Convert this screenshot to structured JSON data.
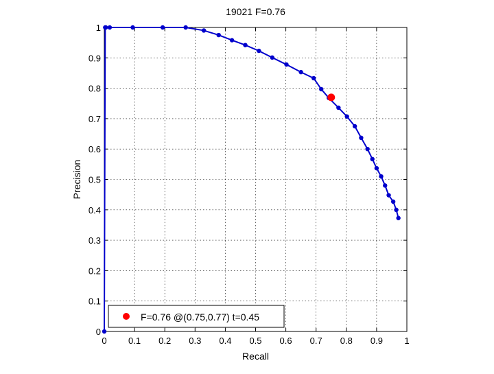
{
  "chart_data": {
    "type": "line",
    "title": "19021 F=0.76",
    "xlabel": "Recall",
    "ylabel": "Precision",
    "xlim": [
      0,
      1
    ],
    "ylim": [
      0,
      1
    ],
    "grid": true,
    "xticks": [
      "0",
      "0.1",
      "0.2",
      "0.3",
      "0.4",
      "0.5",
      "0.6",
      "0.7",
      "0.8",
      "0.9",
      "1"
    ],
    "yticks": [
      "0",
      "0.1",
      "0.2",
      "0.3",
      "0.4",
      "0.5",
      "0.6",
      "0.7",
      "0.8",
      "0.9",
      "1"
    ],
    "series": [
      {
        "color": "#0000cc",
        "x": [
          0,
          0.003,
          0.005,
          0.018,
          0.094,
          0.193,
          0.269,
          0.329,
          0.378,
          0.422,
          0.466,
          0.511,
          0.555,
          0.602,
          0.65,
          0.692,
          0.717,
          0.742,
          0.774,
          0.802,
          0.828,
          0.849,
          0.87,
          0.886,
          0.9,
          0.915,
          0.928,
          0.94,
          0.955,
          0.965,
          0.972
        ],
        "y": [
          0,
          1.0,
          1.0,
          1.0,
          1.0,
          1.0,
          1.0,
          0.99,
          0.975,
          0.958,
          0.942,
          0.923,
          0.901,
          0.878,
          0.853,
          0.833,
          0.797,
          0.768,
          0.736,
          0.707,
          0.675,
          0.637,
          0.6,
          0.567,
          0.537,
          0.51,
          0.48,
          0.448,
          0.427,
          0.4,
          0.373
        ]
      }
    ],
    "best_point": {
      "x": 0.75,
      "y": 0.77,
      "color": "#ff0000"
    },
    "legend": {
      "position": "bottom-left",
      "label": "F=0.76 @(0.75,0.77) t=0.45"
    }
  }
}
